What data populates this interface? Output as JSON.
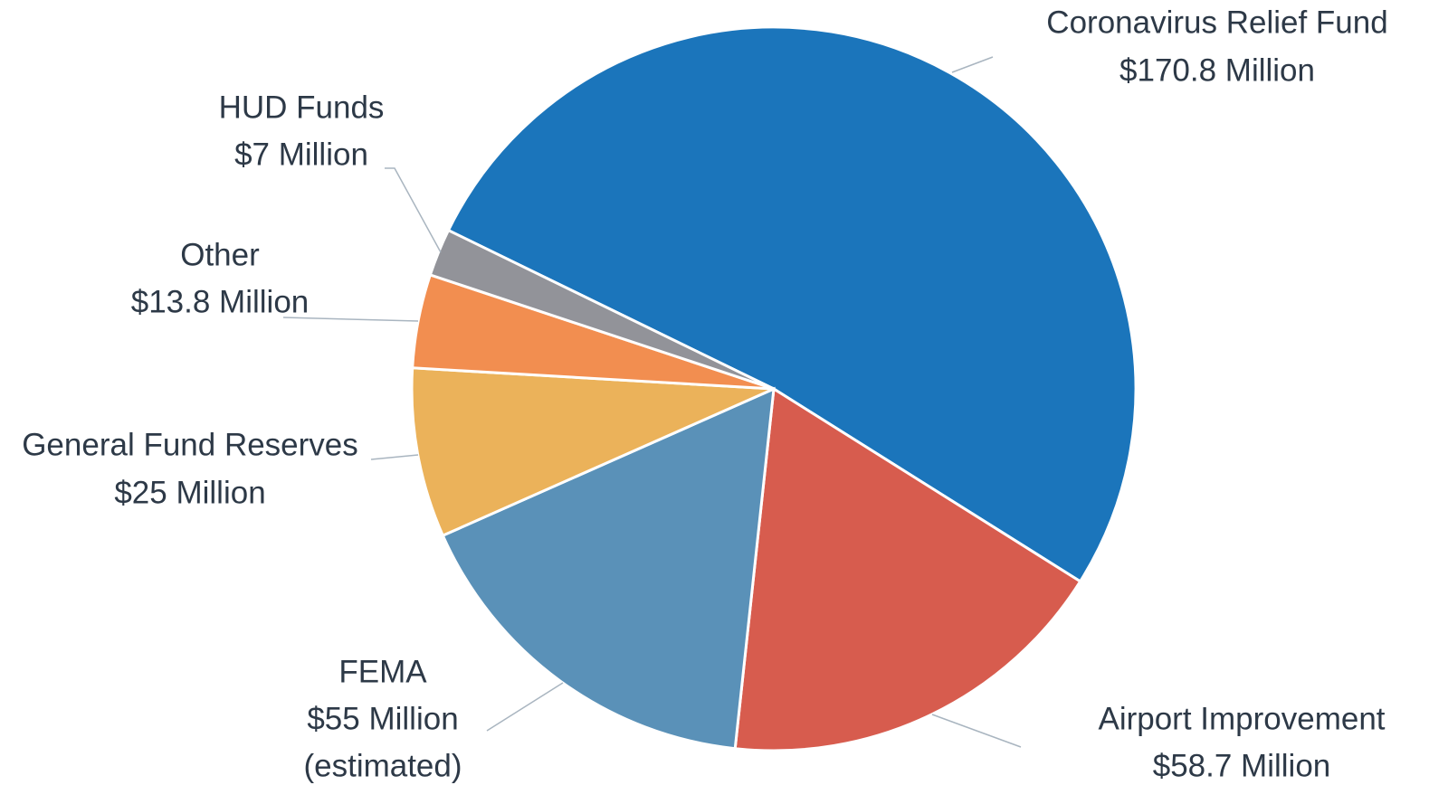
{
  "chart_data": {
    "type": "pie",
    "categories": [
      "Coronavirus Relief Fund",
      "Airport Improvement",
      "FEMA",
      "General Fund Reserves",
      "Other",
      "HUD Funds"
    ],
    "values": [
      170.8,
      58.7,
      55,
      25,
      13.8,
      7
    ],
    "value_labels": [
      "$170.8 Million",
      "$58.7 Million",
      "$55 Million",
      "$25 Million",
      "$13.8 Million",
      "$7 Million"
    ],
    "colors": [
      "#1b75bb",
      "#d75c4e",
      "#5a91b8",
      "#ebb25a",
      "#f28e50",
      "#929399"
    ],
    "annotations": [
      "(estimated)"
    ]
  }
}
